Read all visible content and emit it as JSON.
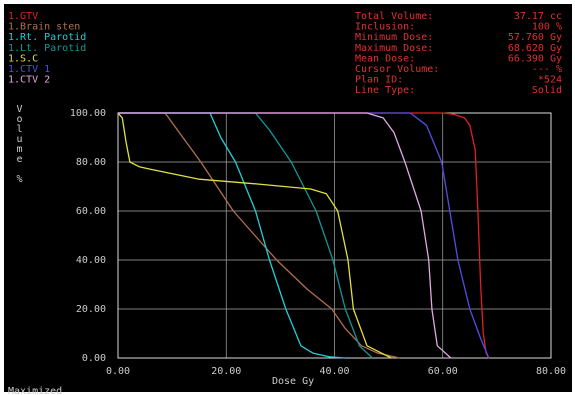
{
  "chart_data": {
    "type": "line",
    "x_label": "Dose Gy",
    "y_label": "Volume %",
    "status": "Maximized",
    "info": [
      {
        "label": "Total Volume:",
        "value": "37.17 cc"
      },
      {
        "label": "Inclusion:",
        "value": "100 %"
      },
      {
        "label": "Minimum Dose:",
        "value": "57.760 Gy"
      },
      {
        "label": "Maximum Dose:",
        "value": "68.620 Gy"
      },
      {
        "label": "Mean Dose:",
        "value": "66.390 Gy"
      },
      {
        "label": "Cursor Volume:",
        "value": "--- %"
      },
      {
        "label": "Plan ID:",
        "value": "*524"
      },
      {
        "label": "Line Type:",
        "value": "Solid"
      }
    ],
    "xlim": [
      0,
      80
    ],
    "ylim": [
      0,
      100
    ],
    "xticks": [
      {
        "value": 0,
        "label": "0.00"
      },
      {
        "value": 20,
        "label": "20.00"
      },
      {
        "value": 40,
        "label": "40.00"
      },
      {
        "value": 60,
        "label": "60.00"
      },
      {
        "value": 80,
        "label": "80.00"
      }
    ],
    "yticks": [
      {
        "value": 0,
        "label": "0.00"
      },
      {
        "value": 20,
        "label": "20.00"
      },
      {
        "value": 40,
        "label": "40.00"
      },
      {
        "value": 60,
        "label": "60.00"
      },
      {
        "value": 80,
        "label": "80.00"
      },
      {
        "value": 100,
        "label": "100.00"
      }
    ],
    "grid": true,
    "series": [
      {
        "name": "1.GTV",
        "color": "#e02020",
        "x": [
          0,
          60,
          62,
          64,
          65,
          66,
          66.5,
          67,
          67.5,
          68,
          68.5
        ],
        "values": [
          100,
          100,
          99.5,
          98,
          95,
          85,
          60,
          30,
          10,
          2,
          0
        ]
      },
      {
        "name": "1.Brain sten",
        "color": "#b0704a",
        "x": [
          0,
          8.7,
          12,
          15.3,
          21.3,
          29.3,
          35,
          39.5,
          42,
          45,
          48,
          52
        ],
        "values": [
          100,
          100,
          90,
          80,
          60,
          40,
          28,
          20,
          12,
          5,
          2,
          0
        ]
      },
      {
        "name": "1.Rt. Parotid",
        "color": "#20d0d8",
        "x": [
          0,
          17,
          19,
          21.7,
          25.4,
          28,
          31,
          33.8,
          36,
          39,
          42
        ],
        "values": [
          100,
          100,
          90,
          80,
          60,
          40,
          20,
          5,
          2,
          0.5,
          0
        ]
      },
      {
        "name": "1.Lt. Parotid",
        "color": "#109898",
        "x": [
          0,
          25.4,
          28,
          32,
          36.6,
          39.7,
          42,
          44.6,
          47
        ],
        "values": [
          100,
          100,
          93,
          80,
          60,
          40,
          20,
          5,
          0
        ]
      },
      {
        "name": "1.S.C",
        "color": "#e0e040",
        "x": [
          0,
          0.8,
          1.5,
          2.2,
          4,
          6,
          15,
          26,
          35.6,
          38.5,
          40.6,
          42.5,
          43.5,
          46,
          50.5
        ],
        "values": [
          100,
          98,
          88,
          80,
          78,
          77,
          73,
          71,
          69,
          67,
          60,
          40,
          20,
          5,
          0
        ]
      },
      {
        "name": "1.CTV 1",
        "color": "#5050e0",
        "x": [
          0,
          54,
          57,
          59.8,
          61.3,
          62.8,
          65,
          67,
          68.5
        ],
        "values": [
          100,
          100,
          95,
          80,
          60,
          40,
          20,
          8,
          0
        ]
      },
      {
        "name": "1.CTV 2",
        "color": "#e0a8e0",
        "x": [
          0,
          46,
          49,
          51,
          53,
          56,
          57.4,
          58,
          59,
          61.5
        ],
        "values": [
          100,
          100,
          98,
          92,
          80,
          60,
          40,
          20,
          5,
          0
        ]
      }
    ]
  }
}
